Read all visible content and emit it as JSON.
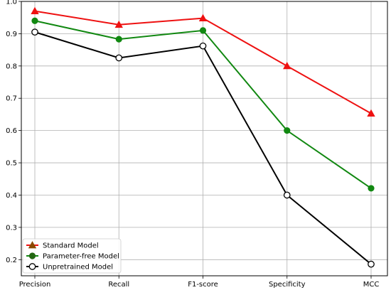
{
  "chart_data": {
    "type": "line",
    "categories": [
      "Precision",
      "Recall",
      "F1-score",
      "Specificity",
      "MCC"
    ],
    "ylim": [
      0.15,
      1.0
    ],
    "yticks": [
      0.2,
      0.3,
      0.4,
      0.5,
      0.6,
      0.7,
      0.8,
      0.9,
      1.0
    ],
    "ytick_labels": [
      "0.2",
      "0.3",
      "0.4",
      "0.5",
      "0.6",
      "0.7",
      "0.8",
      "0.9",
      "1.0"
    ],
    "grid": true,
    "legend_position": "bottom-left",
    "series": [
      {
        "name": "Standard Model",
        "values": [
          0.97,
          0.928,
          0.948,
          0.8,
          0.653
        ],
        "color": "#ee1111",
        "marker": "triangle",
        "legend_marker_color": "#8a4a00"
      },
      {
        "name": "Parameter-free Model",
        "values": [
          0.94,
          0.883,
          0.91,
          0.6,
          0.421
        ],
        "color": "#118811",
        "marker": "circle-filled",
        "legend_marker_color": "#226611"
      },
      {
        "name": "Unpretrained Model",
        "values": [
          0.905,
          0.825,
          0.862,
          0.4,
          0.186
        ],
        "color": "#000000",
        "marker": "circle-open",
        "legend_marker_color": "#000000"
      }
    ]
  }
}
